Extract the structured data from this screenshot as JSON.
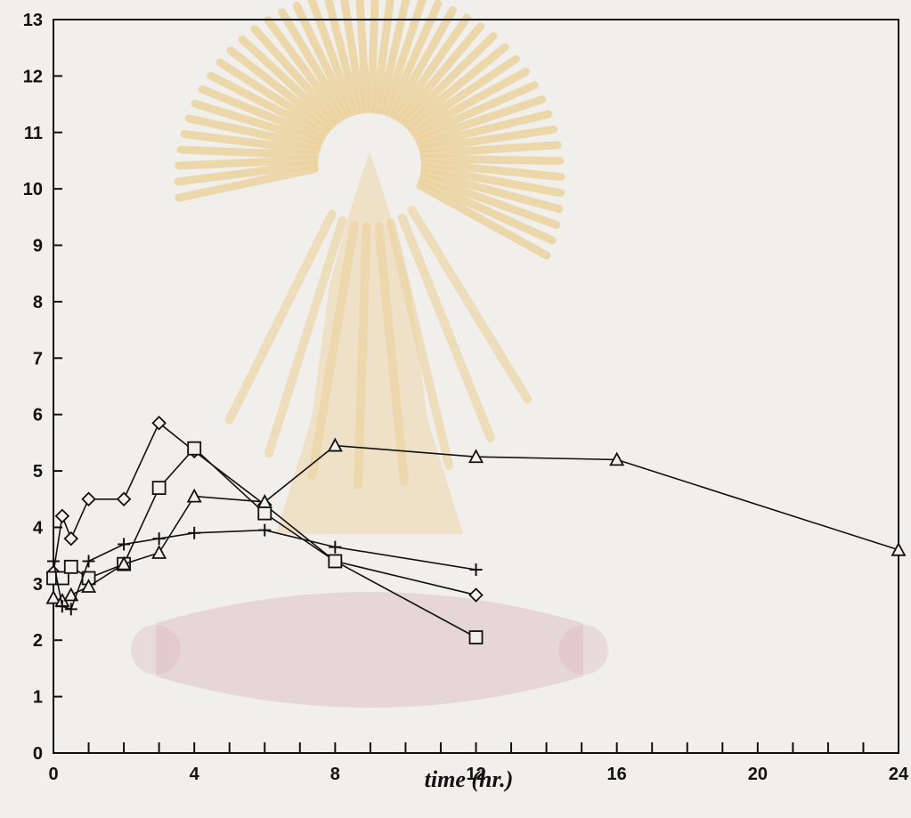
{
  "chart_data": {
    "type": "line",
    "title": "",
    "xlabel": "time (hr.)",
    "ylabel": "",
    "xlim": [
      0,
      24
    ],
    "ylim": [
      0,
      13
    ],
    "x_ticks": [
      0,
      4,
      8,
      12,
      16,
      20,
      24
    ],
    "x_minor_ticks": [
      1,
      2,
      3,
      5,
      6,
      7,
      9,
      10,
      11,
      13,
      14,
      15,
      17,
      18,
      19,
      21,
      22,
      23
    ],
    "y_ticks": [
      0,
      1,
      2,
      3,
      4,
      5,
      6,
      7,
      8,
      9,
      10,
      11,
      12,
      13
    ],
    "grid": false,
    "legend": "none",
    "colors": {
      "line": "#111111",
      "background": "#f1efec",
      "watermark": "#e8b95a",
      "watermark_base": "#c98a96"
    },
    "series": [
      {
        "marker": "diamond",
        "x": [
          0,
          0.25,
          0.5,
          1,
          2,
          3,
          4,
          6,
          8,
          12
        ],
        "y": [
          3.2,
          4.2,
          3.8,
          4.5,
          4.5,
          5.85,
          5.35,
          4.4,
          3.4,
          2.8
        ]
      },
      {
        "marker": "square",
        "x": [
          0,
          0.25,
          0.5,
          1,
          2,
          3,
          4,
          6,
          8,
          12
        ],
        "y": [
          3.1,
          3.1,
          3.3,
          3.1,
          3.35,
          4.7,
          5.4,
          4.25,
          3.4,
          2.05
        ]
      },
      {
        "marker": "triangle",
        "x": [
          0,
          0.25,
          0.5,
          1,
          2,
          3,
          4,
          6,
          8,
          12,
          16,
          24
        ],
        "y": [
          2.75,
          2.7,
          2.8,
          2.95,
          3.35,
          3.55,
          4.55,
          4.45,
          5.45,
          5.25,
          5.2,
          3.6
        ]
      },
      {
        "marker": "plus",
        "x": [
          0,
          0.25,
          0.5,
          1,
          2,
          3,
          4,
          6,
          8,
          12
        ],
        "y": [
          3.4,
          2.6,
          2.55,
          3.4,
          3.7,
          3.8,
          3.9,
          3.95,
          3.65,
          3.25
        ]
      }
    ]
  }
}
